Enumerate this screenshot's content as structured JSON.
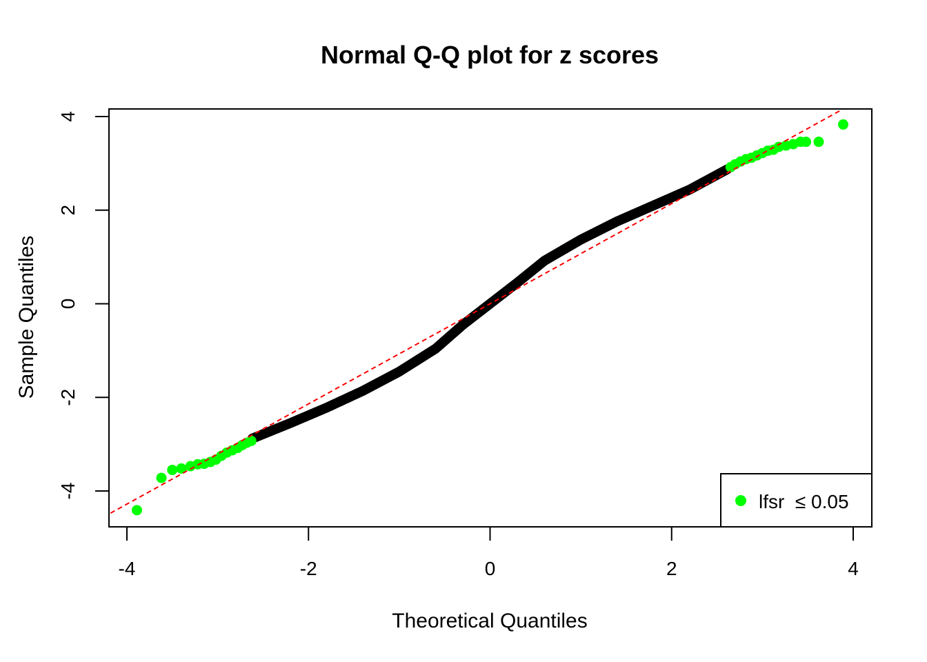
{
  "chart_data": {
    "type": "scatter",
    "title": "Normal Q-Q plot for z scores",
    "xlabel": "Theoretical Quantiles",
    "ylabel": "Sample Quantiles",
    "xlim": [
      -4.2,
      4.2
    ],
    "ylim": [
      -4.8,
      4.2
    ],
    "xticks": [
      -4,
      -2,
      0,
      2,
      4
    ],
    "yticks": [
      -4,
      -2,
      0,
      2,
      4
    ],
    "xtick_labels": [
      "-4",
      "-2",
      "0",
      "2",
      "4"
    ],
    "ytick_labels": [
      "-4",
      "-2",
      "0",
      "2",
      "4"
    ],
    "reference_line": {
      "slope": 1.07,
      "intercept": 0.0,
      "style": "dashed",
      "color": "#ff0000"
    },
    "legend": {
      "position": "bottom-right",
      "label": "lfsr  ≤ 0.05",
      "color": "#00ff00"
    },
    "main_series": {
      "color": "#000000",
      "curve": [
        {
          "x": -2.62,
          "y": -2.88
        },
        {
          "x": -2.2,
          "y": -2.55
        },
        {
          "x": -1.8,
          "y": -2.22
        },
        {
          "x": -1.4,
          "y": -1.86
        },
        {
          "x": -1.0,
          "y": -1.45
        },
        {
          "x": -0.6,
          "y": -0.96
        },
        {
          "x": -0.3,
          "y": -0.45
        },
        {
          "x": 0.0,
          "y": 0.0
        },
        {
          "x": 0.3,
          "y": 0.45
        },
        {
          "x": 0.6,
          "y": 0.92
        },
        {
          "x": 1.0,
          "y": 1.37
        },
        {
          "x": 1.4,
          "y": 1.76
        },
        {
          "x": 1.8,
          "y": 2.1
        },
        {
          "x": 2.2,
          "y": 2.44
        },
        {
          "x": 2.62,
          "y": 2.88
        }
      ]
    },
    "highlight_series": {
      "name": "lfsr  ≤ 0.05",
      "color": "#00ff00",
      "points": [
        {
          "x": -3.89,
          "y": -4.41
        },
        {
          "x": -3.62,
          "y": -3.72
        },
        {
          "x": -3.5,
          "y": -3.55
        },
        {
          "x": -3.4,
          "y": -3.52
        },
        {
          "x": -3.3,
          "y": -3.47
        },
        {
          "x": -3.22,
          "y": -3.43
        },
        {
          "x": -3.15,
          "y": -3.42
        },
        {
          "x": -3.08,
          "y": -3.38
        },
        {
          "x": -3.02,
          "y": -3.33
        },
        {
          "x": -2.96,
          "y": -3.25
        },
        {
          "x": -2.9,
          "y": -3.18
        },
        {
          "x": -2.84,
          "y": -3.13
        },
        {
          "x": -2.78,
          "y": -3.08
        },
        {
          "x": -2.73,
          "y": -3.02
        },
        {
          "x": -2.68,
          "y": -2.97
        },
        {
          "x": -2.63,
          "y": -2.93
        },
        {
          "x": 2.65,
          "y": 2.92
        },
        {
          "x": 2.7,
          "y": 2.98
        },
        {
          "x": 2.76,
          "y": 3.04
        },
        {
          "x": 2.82,
          "y": 3.09
        },
        {
          "x": 2.88,
          "y": 3.12
        },
        {
          "x": 2.94,
          "y": 3.17
        },
        {
          "x": 3.0,
          "y": 3.22
        },
        {
          "x": 3.06,
          "y": 3.27
        },
        {
          "x": 3.12,
          "y": 3.29
        },
        {
          "x": 3.18,
          "y": 3.35
        },
        {
          "x": 3.26,
          "y": 3.38
        },
        {
          "x": 3.34,
          "y": 3.41
        },
        {
          "x": 3.42,
          "y": 3.46
        },
        {
          "x": 3.48,
          "y": 3.46
        },
        {
          "x": 3.62,
          "y": 3.46
        },
        {
          "x": 3.89,
          "y": 3.83
        }
      ]
    }
  }
}
